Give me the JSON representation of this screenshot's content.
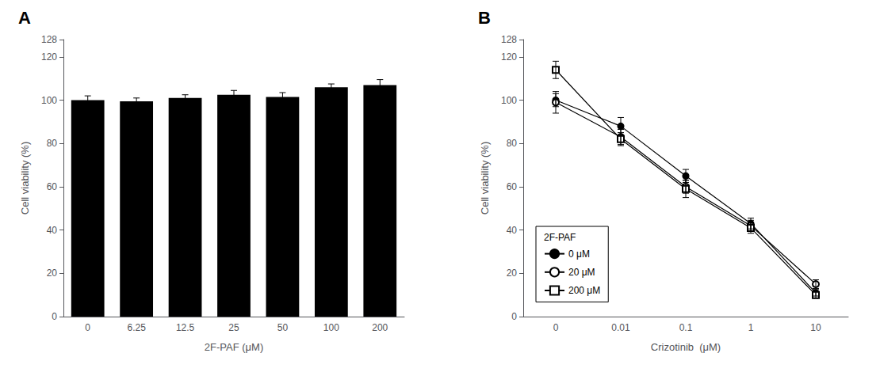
{
  "chart_data": [
    {
      "type": "bar",
      "title": "A",
      "xlabel": "2F-PAF (μM)",
      "ylabel": "Cell viability (%)",
      "categories": [
        "0",
        "6.25",
        "12.5",
        "25",
        "50",
        "100",
        "200"
      ],
      "values": [
        100.0,
        99.5,
        101.0,
        102.5,
        101.5,
        106.0,
        107.0
      ],
      "errors": [
        2.0,
        1.5,
        1.5,
        2.0,
        2.0,
        1.5,
        2.5
      ],
      "color": "#000000",
      "ylim": [
        0,
        128
      ],
      "yticks": [
        0,
        20,
        40,
        60,
        80,
        100,
        120
      ],
      "grid": false
    },
    {
      "type": "line",
      "title": "B",
      "xlabel": "Crizotinib  (μM)",
      "ylabel": "Cell viability (%)",
      "categories": [
        "0",
        "0.01",
        "0.1",
        "1",
        "10"
      ],
      "series": [
        {
          "name": "0 μM",
          "values": [
            100.0,
            88.0,
            65.0,
            43.0,
            11.0
          ],
          "errors": [
            3.0,
            4.0,
            3.0,
            2.5,
            1.5
          ],
          "color": "#000000",
          "marker": "circle"
        },
        {
          "name": "20 μM",
          "values": [
            99.0,
            83.0,
            60.0,
            42.0,
            15.0
          ],
          "errors": [
            5.0,
            3.5,
            3.0,
            2.5,
            2.0
          ],
          "color": "#000000",
          "marker": "emptyCircle"
        },
        {
          "name": "200 μM",
          "values": [
            114.0,
            82.0,
            59.0,
            41.0,
            10.0
          ],
          "errors": [
            4.0,
            3.0,
            4.0,
            2.5,
            1.5
          ],
          "color": "#000000",
          "marker": "emptyRect"
        }
      ],
      "ylim": [
        0,
        128
      ],
      "yticks": [
        0,
        20,
        40,
        60,
        80,
        100,
        120
      ],
      "grid": false,
      "legend": "lower left",
      "legend_title": "2F-PAF"
    }
  ]
}
